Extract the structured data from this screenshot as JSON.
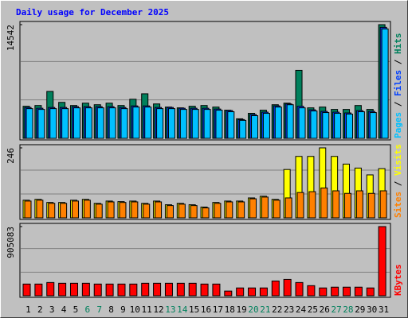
{
  "chart_data": [
    {
      "type": "bar",
      "title": "Daily usage for December 2025",
      "title_color": "#0000ff",
      "series": [
        {
          "name": "Hits",
          "color": "#00805c",
          "values": [
            4100,
            4200,
            6000,
            4600,
            4200,
            4500,
            4300,
            4500,
            4200,
            5000,
            5700,
            4400,
            4000,
            3900,
            4100,
            4200,
            4000,
            3600,
            2500,
            3200,
            3600,
            4300,
            4500,
            8700,
            3900,
            4000,
            3700,
            3700,
            4200,
            3700,
            14542
          ]
        },
        {
          "name": "Files",
          "color": "#0040ff",
          "values": [
            3950,
            3850,
            3950,
            3950,
            4050,
            4050,
            4050,
            4050,
            3950,
            4150,
            4150,
            3950,
            3950,
            3850,
            3850,
            3850,
            3750,
            3550,
            2400,
            3050,
            3350,
            4150,
            4400,
            4100,
            3650,
            3450,
            3350,
            3250,
            3550,
            3450,
            14200
          ]
        },
        {
          "name": "Pages",
          "color": "#00c0ff",
          "values": [
            3800,
            3700,
            3800,
            3800,
            3900,
            3900,
            3900,
            3900,
            3800,
            4000,
            4000,
            3800,
            3800,
            3700,
            3700,
            3700,
            3600,
            3400,
            2300,
            2900,
            3200,
            4000,
            4300,
            3900,
            3500,
            3300,
            3200,
            3100,
            3400,
            3300,
            14000
          ]
        }
      ],
      "ylim": [
        0,
        14542
      ],
      "yticks": [
        14542
      ],
      "legend_separator": " / "
    },
    {
      "type": "bar",
      "series": [
        {
          "name": "Visits",
          "color": "#ffff00",
          "values": [
            62,
            65,
            54,
            54,
            62,
            65,
            51,
            59,
            57,
            59,
            51,
            59,
            46,
            51,
            46,
            38,
            54,
            59,
            59,
            70,
            76,
            65,
            170,
            216,
            216,
            246,
            216,
            189,
            175,
            151,
            173
          ]
        },
        {
          "name": "Sites",
          "color": "#ff8000",
          "values": [
            59,
            62,
            51,
            51,
            59,
            62,
            48,
            56,
            54,
            56,
            48,
            56,
            43,
            48,
            43,
            35,
            51,
            56,
            56,
            67,
            73,
            62,
            70,
            89,
            92,
            105,
            95,
            86,
            95,
            86,
            95
          ]
        }
      ],
      "ylim": [
        0,
        246
      ],
      "yticks": [
        246
      ],
      "legend_separator": " / "
    },
    {
      "type": "bar",
      "categories": [
        "1",
        "2",
        "3",
        "4",
        "5",
        "6",
        "7",
        "8",
        "9",
        "10",
        "11",
        "12",
        "13",
        "14",
        "15",
        "16",
        "17",
        "18",
        "19",
        "20",
        "21",
        "22",
        "23",
        "24",
        "25",
        "26",
        "27",
        "28",
        "29",
        "30",
        "31"
      ],
      "category_colors": [
        "#000000",
        "#000000",
        "#000000",
        "#000000",
        "#000000",
        "#00805c",
        "#00805c",
        "#000000",
        "#000000",
        "#000000",
        "#000000",
        "#000000",
        "#00805c",
        "#00805c",
        "#000000",
        "#000000",
        "#000000",
        "#000000",
        "#000000",
        "#00805c",
        "#00805c",
        "#000000",
        "#000000",
        "#000000",
        "#000000",
        "#000000",
        "#00805c",
        "#00805c",
        "#000000",
        "#000000",
        "#000000"
      ],
      "series": [
        {
          "name": "KBytes",
          "color": "#ff0000",
          "values": [
            153000,
            153000,
            173000,
            163000,
            163000,
            163000,
            153000,
            153000,
            153000,
            153000,
            163000,
            163000,
            163000,
            163000,
            163000,
            153000,
            153000,
            61000,
            102000,
            102000,
            102000,
            193000,
            214000,
            173000,
            132000,
            102000,
            112000,
            112000,
            112000,
            102000,
            905083
          ]
        }
      ],
      "ylim": [
        0,
        905083
      ],
      "yticks": [
        905083
      ]
    }
  ]
}
